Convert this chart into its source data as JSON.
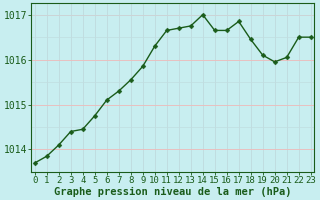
{
  "x": [
    0,
    1,
    2,
    3,
    4,
    5,
    6,
    7,
    8,
    9,
    10,
    11,
    12,
    13,
    14,
    15,
    16,
    17,
    18,
    19,
    20,
    21,
    22,
    23
  ],
  "y": [
    1013.7,
    1013.85,
    1014.1,
    1014.4,
    1014.45,
    1014.75,
    1015.1,
    1015.3,
    1015.55,
    1015.85,
    1016.3,
    1016.65,
    1016.7,
    1016.75,
    1017.0,
    1016.65,
    1016.65,
    1016.85,
    1016.45,
    1016.1,
    1015.95,
    1016.05,
    1016.5,
    1016.5
  ],
  "line_color": "#1a5c1a",
  "marker": "D",
  "marker_size": 2.5,
  "line_width": 1.0,
  "bg_color": "#c8eef0",
  "grid_color_v": "#c0dde0",
  "grid_color_h": "#e8c0c0",
  "axis_color": "#1a5c1a",
  "tick_label_color": "#1a5c1a",
  "xlabel": "Graphe pression niveau de la mer (hPa)",
  "xlabel_color": "#1a5c1a",
  "ylim": [
    1013.5,
    1017.25
  ],
  "yticks": [
    1014,
    1015,
    1016,
    1017
  ],
  "xlim": [
    -0.3,
    23.3
  ],
  "tick_fontsize": 7,
  "xlabel_fontsize": 7.5
}
